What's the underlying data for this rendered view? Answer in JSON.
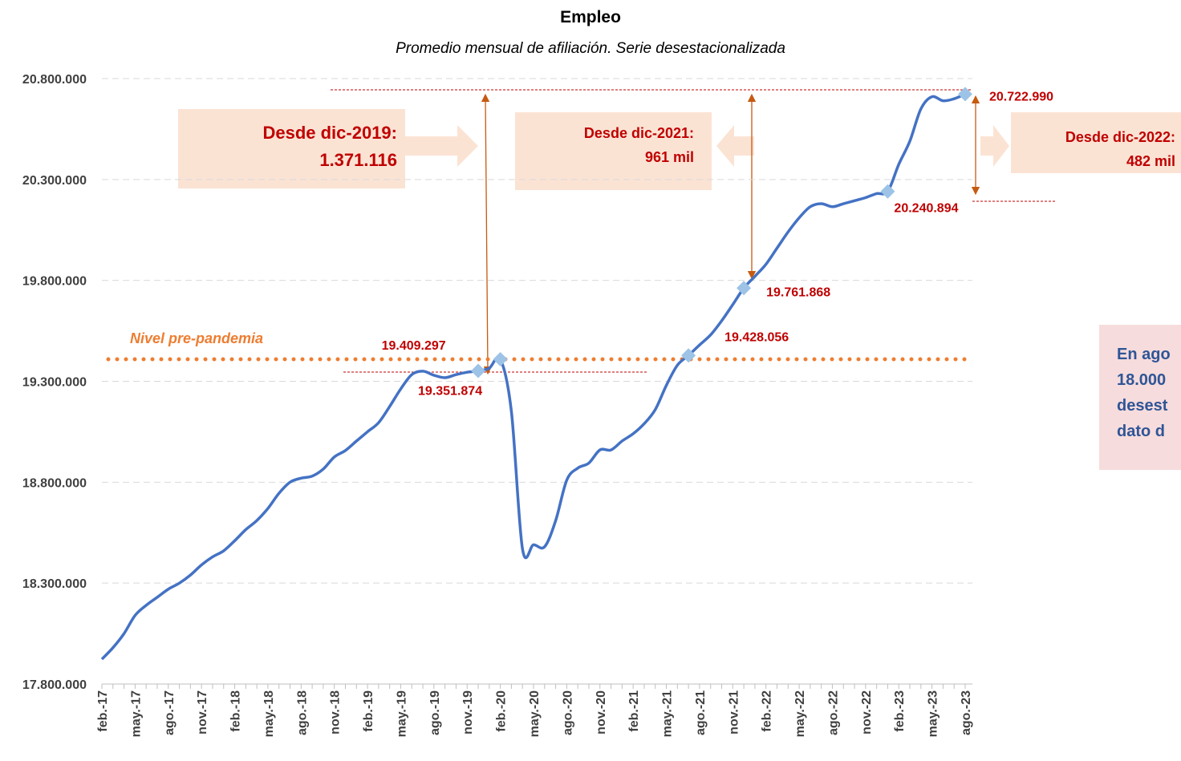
{
  "chart_data": {
    "type": "line",
    "title": "Empleo",
    "subtitle": "Promedio mensual de afiliación. Serie desestacionalizada",
    "categories": [
      "feb.-17",
      null,
      null,
      "may.-17",
      null,
      null,
      "ago.-17",
      null,
      null,
      "nov.-17",
      null,
      null,
      "feb.-18",
      null,
      null,
      "may.-18",
      null,
      null,
      "ago.-18",
      null,
      null,
      "nov.-18",
      null,
      null,
      "feb.-19",
      null,
      null,
      "may.-19",
      null,
      null,
      "ago.-19",
      null,
      null,
      "nov.-19",
      null,
      null,
      "feb.-20",
      null,
      null,
      "may.-20",
      null,
      null,
      "ago.-20",
      null,
      null,
      "nov.-20",
      null,
      null,
      "feb.-21",
      null,
      null,
      "may.-21",
      null,
      null,
      "ago.-21",
      null,
      null,
      "nov.-21",
      null,
      null,
      "feb.-22",
      null,
      null,
      "may.-22",
      null,
      null,
      "ago.-22",
      null,
      null,
      "nov.-22",
      null,
      null,
      "feb.-23",
      null,
      null,
      "may.-23",
      null,
      null,
      "ago.-23"
    ],
    "series": [
      {
        "name": "Afiliación",
        "color": "#4472c4",
        "values": [
          17923000,
          17980000,
          18050000,
          18140000,
          18190000,
          18230000,
          18270000,
          18300000,
          18340000,
          18390000,
          18430000,
          18460000,
          18510000,
          18565000,
          18610000,
          18670000,
          18745000,
          18800000,
          18820000,
          18830000,
          18865000,
          18925000,
          18957000,
          19004000,
          19050000,
          19095000,
          19175000,
          19262000,
          19333000,
          19350000,
          19330000,
          19318000,
          19333000,
          19345000,
          19351874,
          19365000,
          19409297,
          19150000,
          18470000,
          18490000,
          18480000,
          18610000,
          18810000,
          18870000,
          18895000,
          18960000,
          18960000,
          19004000,
          19040000,
          19090000,
          19160000,
          19280000,
          19380000,
          19428056,
          19480000,
          19530000,
          19600000,
          19680000,
          19761868,
          19820000,
          19880000,
          19960000,
          20040000,
          20110000,
          20165000,
          20180000,
          20165000,
          20180000,
          20195000,
          20210000,
          20230000,
          20240894,
          20375000,
          20490000,
          20650000,
          20710000,
          20690000,
          20700000,
          20722990
        ],
        "value_labels": [
          null,
          null,
          null,
          null,
          null,
          null,
          null,
          null,
          null,
          null,
          null,
          null,
          null,
          null,
          null,
          null,
          null,
          null,
          null,
          null,
          null,
          null,
          null,
          null,
          null,
          null,
          null,
          null,
          null,
          null,
          null,
          null,
          null,
          null,
          "19.351.874",
          null,
          "19.409.297",
          null,
          null,
          null,
          null,
          null,
          null,
          null,
          null,
          null,
          null,
          null,
          null,
          null,
          null,
          null,
          null,
          "19.428.056",
          null,
          null,
          null,
          null,
          "19.761.868",
          null,
          null,
          null,
          null,
          null,
          null,
          null,
          null,
          null,
          null,
          null,
          null,
          "20.240.894",
          null,
          null,
          null,
          null,
          null,
          null,
          "20.722.990"
        ]
      }
    ],
    "ylim": [
      17800000,
      20800000
    ],
    "yticks": [
      {
        "value": 17800000,
        "label": "17.800.000"
      },
      {
        "value": 18300000,
        "label": "18.300.000"
      },
      {
        "value": 18800000,
        "label": "18.800.000"
      },
      {
        "value": 19300000,
        "label": "19.300.000"
      },
      {
        "value": 19800000,
        "label": "19.800.000"
      },
      {
        "value": 20300000,
        "label": "20.300.000"
      },
      {
        "value": 20800000,
        "label": "20.800.000"
      }
    ],
    "grid": true,
    "reference_line": {
      "label": "Nivel pre-pandemia",
      "value": 19409297,
      "color": "#ed7d31"
    },
    "annotations": [
      [
        "Desde dic-2019:",
        "1.371.116"
      ],
      [
        "Desde dic-2021:",
        "961 mil"
      ],
      [
        "Desde dic-2022:",
        "482 mil"
      ]
    ],
    "note": [
      "En ago",
      "18.000",
      "desest",
      "dato d"
    ]
  }
}
